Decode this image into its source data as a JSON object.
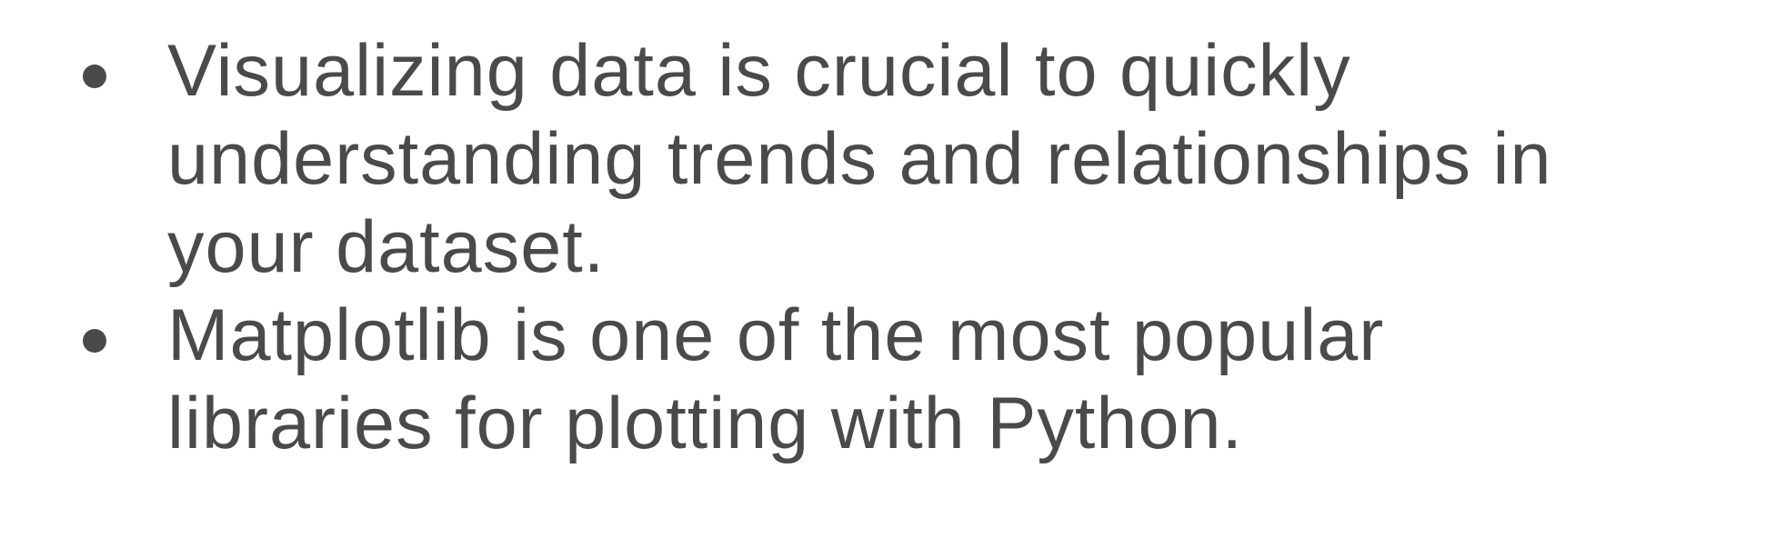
{
  "slide": {
    "bullets": [
      {
        "lines": [
          "Visualizing data is crucial to quickly",
          "understanding trends and relationships in",
          "your dataset."
        ]
      },
      {
        "lines": [
          "Matplotlib is one of the most popular",
          "libraries for plotting with Python."
        ]
      }
    ],
    "colors": {
      "text": "#4a4a4a",
      "background": "#ffffff"
    }
  }
}
